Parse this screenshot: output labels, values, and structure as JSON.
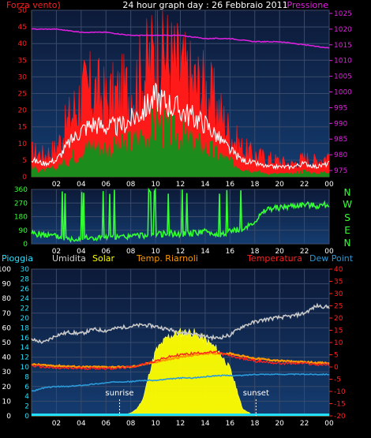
{
  "header": {
    "wind_label": "Forza vento)",
    "title": "24 hour graph day : 26 Febbraio 2011",
    "pressure_label": "Pressione"
  },
  "legend": {
    "rain": "Pioggia",
    "humidity": "Umidita",
    "solar": "Solar",
    "dew_temp": "Temp. Riarnoli",
    "temperature": "Temperatura",
    "dew_point": "Dew Point"
  },
  "direction_labels": [
    "N",
    "W",
    "S",
    "E",
    "N"
  ],
  "sun_labels": {
    "sunrise": "sunrise",
    "sunset": "sunset"
  },
  "colors": {
    "gust": "#ff1a1a",
    "wind": "#ffffff",
    "wind_avg": "#1c8c1c",
    "pressure": "#e020e0",
    "direction": "#33ff33",
    "humidity": "#c8c8c8",
    "solar": "#ffff00",
    "temperature": "#ff2020",
    "dew_temp": "#ff9900",
    "dew_point": "#2a9ad8",
    "rain": "#22e0ff",
    "panel_top": "#0d1a38",
    "panel_bottom": "#143c70"
  },
  "chart_data": [
    {
      "type": "area",
      "title": "24 hour graph day : 26 Febbraio 2011",
      "x_ticks": [
        "02",
        "04",
        "06",
        "08",
        "10",
        "12",
        "14",
        "16",
        "18",
        "20",
        "22",
        "00"
      ],
      "y_left_ticks": [
        0,
        5,
        10,
        15,
        20,
        25,
        30,
        35,
        40,
        45,
        50
      ],
      "y_left_lim": [
        0,
        50
      ],
      "y_right_ticks": [
        975,
        980,
        985,
        990,
        995,
        1000,
        1005,
        1010,
        1015,
        1020,
        1025
      ],
      "y_right_lim": [
        973,
        1026
      ],
      "x_lim": [
        0,
        24
      ],
      "grid": true,
      "series": [
        {
          "name": "Forza vento)",
          "key": "gust",
          "x": [
            0,
            1,
            2,
            3,
            4,
            5,
            6,
            7,
            8,
            9,
            10,
            10.5,
            11,
            12,
            13,
            14,
            15,
            16,
            17,
            18,
            19,
            20,
            21,
            22,
            23,
            24
          ],
          "values": [
            8,
            7,
            9,
            18,
            26,
            28,
            24,
            26,
            28,
            33,
            40,
            44,
            38,
            34,
            30,
            28,
            22,
            14,
            9,
            7,
            6,
            5,
            4,
            6,
            5,
            7
          ]
        },
        {
          "name": "Forza vento)",
          "key": "wind",
          "x": [
            0,
            1,
            2,
            3,
            4,
            5,
            6,
            7,
            8,
            9,
            10,
            11,
            12,
            13,
            14,
            15,
            16,
            17,
            18,
            19,
            20,
            21,
            22,
            23,
            24
          ],
          "values": [
            5,
            4,
            5,
            10,
            14,
            16,
            15,
            15,
            17,
            20,
            24,
            22,
            20,
            18,
            16,
            12,
            8,
            5,
            4,
            3,
            3,
            3,
            4,
            3,
            4
          ]
        },
        {
          "name": "Forza vento)",
          "key": "wind_avg",
          "x": [
            0,
            1,
            2,
            3,
            4,
            5,
            6,
            7,
            8,
            9,
            10,
            11,
            12,
            13,
            14,
            15,
            16,
            17,
            18,
            19,
            20,
            21,
            22,
            23,
            24
          ],
          "values": [
            3,
            2,
            3,
            6,
            9,
            11,
            10,
            10,
            12,
            14,
            18,
            16,
            14,
            12,
            10,
            8,
            5,
            3,
            2,
            1,
            1,
            1,
            2,
            1,
            2
          ]
        },
        {
          "name": "Pressione",
          "key": "pressure",
          "x": [
            0,
            2,
            4,
            6,
            8,
            10,
            12,
            14,
            16,
            18,
            20,
            22,
            24
          ],
          "values": [
            1020,
            1020,
            1019,
            1019,
            1018,
            1018,
            1018,
            1017,
            1017,
            1016,
            1016,
            1015,
            1014
          ]
        }
      ]
    },
    {
      "type": "line",
      "x_ticks": [
        "02",
        "04",
        "06",
        "08",
        "10",
        "12",
        "14",
        "16",
        "18",
        "20",
        "22",
        "00"
      ],
      "y_ticks": [
        0,
        90,
        180,
        270,
        360
      ],
      "y_lim": [
        0,
        360
      ],
      "x_lim": [
        0,
        24
      ],
      "series": [
        {
          "name": "direction",
          "key": "direction",
          "x": [
            0,
            1,
            2,
            3,
            4,
            5,
            6,
            7,
            8,
            9,
            10,
            11,
            12,
            13,
            14,
            15,
            16,
            17,
            18,
            19,
            20,
            21,
            22,
            23,
            24
          ],
          "values": [
            70,
            60,
            50,
            30,
            40,
            35,
            45,
            40,
            50,
            55,
            60,
            70,
            65,
            70,
            80,
            60,
            80,
            100,
            150,
            230,
            240,
            250,
            260,
            250,
            260
          ]
        }
      ]
    },
    {
      "type": "line",
      "x_ticks": [
        "02",
        "04",
        "06",
        "08",
        "10",
        "12",
        "14",
        "16",
        "18",
        "20",
        "22",
        "00"
      ],
      "y_left_ticks": [
        0,
        10,
        20,
        30,
        40,
        50,
        60,
        70,
        80,
        90,
        100
      ],
      "y_left_lim": [
        0,
        100
      ],
      "y_mid_ticks": [
        0,
        2,
        4,
        6,
        8,
        10,
        12,
        14,
        16,
        18,
        20,
        22,
        24,
        26,
        28,
        30
      ],
      "y_mid_lim": [
        0,
        30
      ],
      "y_right_ticks": [
        -20,
        -15,
        -10,
        -5,
        0,
        5,
        10,
        15,
        20,
        25,
        30,
        35,
        40
      ],
      "y_right_lim": [
        -20,
        40
      ],
      "x_lim": [
        0,
        24
      ],
      "sunrise_hour": 7.1,
      "sunset_hour": 18.1,
      "series": [
        {
          "name": "Umidita",
          "key": "humidity",
          "axis": "left",
          "x": [
            0,
            1,
            2,
            3,
            4,
            5,
            6,
            7,
            8,
            9,
            10,
            11,
            12,
            13,
            14,
            15,
            16,
            17,
            18,
            19,
            20,
            21,
            22,
            23,
            24
          ],
          "values": [
            52,
            50,
            55,
            57,
            56,
            59,
            58,
            60,
            61,
            62,
            61,
            59,
            57,
            56,
            54,
            53,
            55,
            61,
            64,
            66,
            67,
            68,
            70,
            75,
            74
          ]
        },
        {
          "name": "Solar",
          "key": "solar",
          "axis": "left",
          "x": [
            0,
            7,
            8,
            8.5,
            9,
            9.5,
            10,
            11,
            12,
            13,
            14,
            15,
            16,
            16.5,
            17,
            18,
            24
          ],
          "values": [
            0,
            0,
            2,
            5,
            12,
            30,
            45,
            55,
            58,
            58,
            53,
            46,
            33,
            20,
            5,
            0,
            0
          ]
        },
        {
          "name": "Temperatura",
          "key": "temperature",
          "axis": "right",
          "x": [
            0,
            1,
            2,
            3,
            4,
            5,
            6,
            7,
            8,
            9,
            10,
            11,
            12,
            13,
            14,
            15,
            16,
            17,
            18,
            19,
            20,
            21,
            22,
            23,
            24
          ],
          "values": [
            0.5,
            0,
            -0.5,
            -0.5,
            -0.5,
            -0.5,
            -0.5,
            -0.5,
            0,
            1,
            2.5,
            4,
            5,
            5.5,
            6,
            6,
            4.5,
            3.5,
            2.5,
            2,
            1.5,
            1.5,
            1.5,
            1,
            1
          ]
        },
        {
          "name": "Temp. Riarnoli",
          "key": "dew_temp",
          "axis": "right",
          "x": [
            0,
            2,
            4,
            6,
            8,
            10,
            12,
            14,
            16,
            18,
            20,
            22,
            24
          ],
          "values": [
            1,
            0.5,
            0,
            0,
            0,
            2,
            4,
            5.5,
            5.5,
            3.5,
            2.5,
            2,
            1.5
          ]
        },
        {
          "name": "Dew Point",
          "key": "dew_point",
          "axis": "right",
          "x": [
            0,
            1,
            2,
            3,
            4,
            5,
            6,
            7,
            8,
            9,
            10,
            11,
            12,
            13,
            14,
            15,
            16,
            17,
            18,
            19,
            20,
            21,
            22,
            23,
            24
          ],
          "values": [
            -10,
            -8.5,
            -8,
            -8,
            -7.5,
            -7,
            -6.5,
            -6,
            -6,
            -5.5,
            -5.5,
            -5,
            -4.5,
            -4.5,
            -4,
            -3.5,
            -3.5,
            -3.5,
            -3,
            -3,
            -3,
            -3,
            -3,
            -3,
            -3
          ]
        },
        {
          "name": "Pioggia",
          "key": "rain",
          "axis": "mid",
          "x": [
            0,
            24
          ],
          "values": [
            0,
            0
          ]
        }
      ]
    }
  ]
}
